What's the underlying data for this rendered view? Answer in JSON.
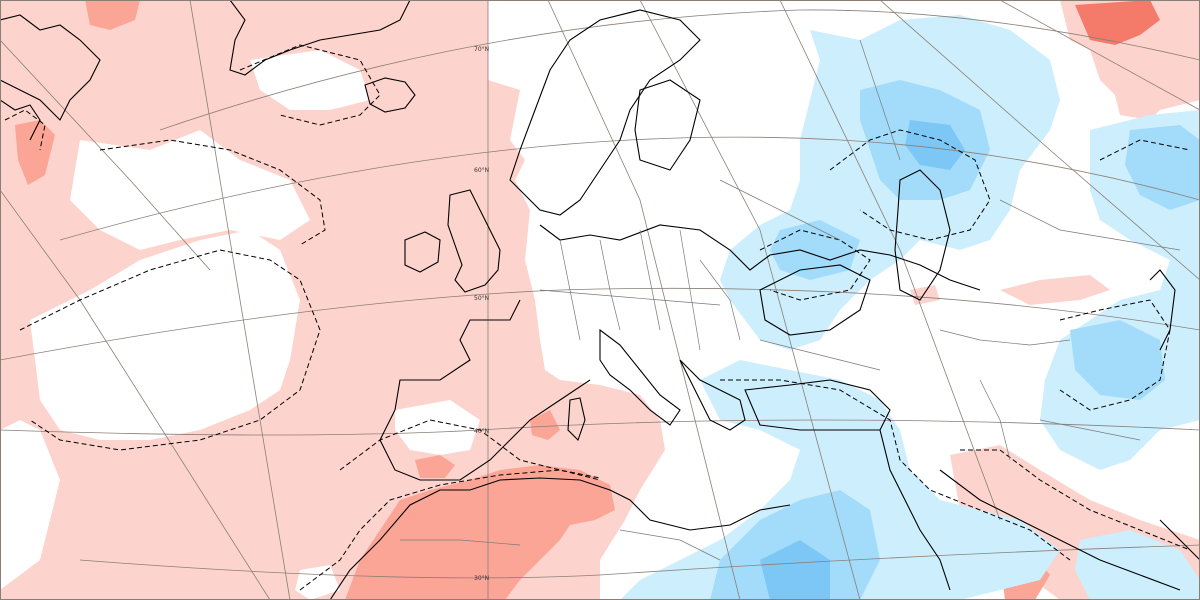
{
  "map": {
    "colors": {
      "warm_light": "#fdd3cd",
      "warm_mid": "#fba596",
      "warm_strong": "#f47a6a",
      "cool_light": "#cdeefd",
      "cool_mid": "#a3dcfa",
      "cool_strong": "#7cc7f6",
      "coast": "#000000",
      "graticule": "#8a7f76"
    },
    "latitude_labels": [
      "70°N",
      "60°N",
      "50°N",
      "40°N",
      "30°N"
    ]
  }
}
